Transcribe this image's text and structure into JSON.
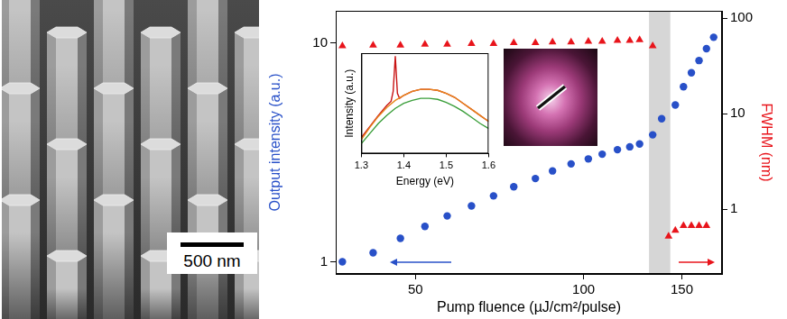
{
  "image": {
    "scale_bar": "500 nm"
  },
  "chart_data": [
    {
      "type": "scatter",
      "log": true,
      "x_label": "Pump fluence (µJ/cm²/pulse)",
      "y_label": "Output intensity (a.u.)",
      "y2_label": "FWHM (nm)",
      "xlim": [
        36,
        177
      ],
      "xticks": [
        50,
        100,
        150
      ],
      "ylim": [
        0.88,
        14
      ],
      "yticks": [
        1,
        10
      ],
      "y2lim": [
        0.21,
        119
      ],
      "y2ticks": [
        1,
        10,
        100
      ],
      "grid": false,
      "shaded_x": [
        131,
        143
      ],
      "series": [
        {
          "color": "#2850c8",
          "marker": "circle",
          "x": [
            37,
            42,
            47,
            52,
            57,
            63,
            69,
            75,
            82,
            88,
            95,
            102,
            108,
            115,
            121,
            126,
            133,
            138,
            146,
            151,
            156,
            161,
            166,
            171
          ],
          "values": [
            1.0,
            1.1,
            1.28,
            1.45,
            1.62,
            1.8,
            2.0,
            2.2,
            2.4,
            2.6,
            2.8,
            2.95,
            3.1,
            3.25,
            3.35,
            3.45,
            3.8,
            4.5,
            5.2,
            6.3,
            7.3,
            8.3,
            9.4,
            10.6
          ]
        },
        {
          "color": "#e8141b",
          "marker": "triangle",
          "axis": "y2",
          "x": [
            37,
            42,
            47,
            52,
            57,
            63,
            69,
            75,
            82,
            88,
            95,
            102,
            108,
            115,
            121,
            126,
            133,
            142,
            146,
            151,
            156,
            161,
            166
          ],
          "values": [
            51,
            52,
            52,
            53,
            53,
            54,
            54,
            55,
            55,
            56,
            56,
            57,
            57,
            58,
            58,
            59,
            51,
            0.52,
            0.6,
            0.67,
            0.67,
            0.67,
            0.67
          ]
        }
      ]
    },
    {
      "type": "line",
      "x_label": "Energy (eV)",
      "y_label": "Intensity (a.u.)",
      "xlim": [
        1.3,
        1.6
      ],
      "xticks": [
        1.3,
        1.4,
        1.5,
        1.6
      ],
      "ylim": [
        0,
        1
      ],
      "tick_labels": "x",
      "grid": false,
      "series": [
        {
          "color": "#3a9e3a",
          "x": [
            1.3,
            1.32,
            1.34,
            1.36,
            1.38,
            1.4,
            1.42,
            1.44,
            1.46,
            1.48,
            1.5,
            1.52,
            1.54,
            1.56,
            1.58,
            1.6
          ],
          "values": [
            0.1,
            0.2,
            0.3,
            0.38,
            0.45,
            0.5,
            0.53,
            0.55,
            0.55,
            0.54,
            0.51,
            0.47,
            0.42,
            0.36,
            0.3,
            0.25
          ]
        },
        {
          "color": "#e8861a",
          "x": [
            1.3,
            1.32,
            1.34,
            1.36,
            1.38,
            1.4,
            1.42,
            1.44,
            1.46,
            1.48,
            1.5,
            1.52,
            1.54,
            1.56,
            1.58,
            1.6
          ],
          "values": [
            0.14,
            0.26,
            0.37,
            0.46,
            0.53,
            0.58,
            0.62,
            0.64,
            0.64,
            0.63,
            0.6,
            0.56,
            0.5,
            0.44,
            0.38,
            0.32
          ]
        },
        {
          "color": "#c81414",
          "x": [
            1.3,
            1.32,
            1.34,
            1.36,
            1.37,
            1.375,
            1.38,
            1.385,
            1.39,
            1.4,
            1.42,
            1.44,
            1.46,
            1.48,
            1.5,
            1.52,
            1.54,
            1.56,
            1.58,
            1.6
          ],
          "values": [
            0.16,
            0.27,
            0.38,
            0.48,
            0.52,
            0.62,
            0.97,
            0.6,
            0.55,
            0.58,
            0.62,
            0.64,
            0.64,
            0.63,
            0.6,
            0.56,
            0.5,
            0.44,
            0.38,
            0.32
          ]
        }
      ]
    }
  ]
}
